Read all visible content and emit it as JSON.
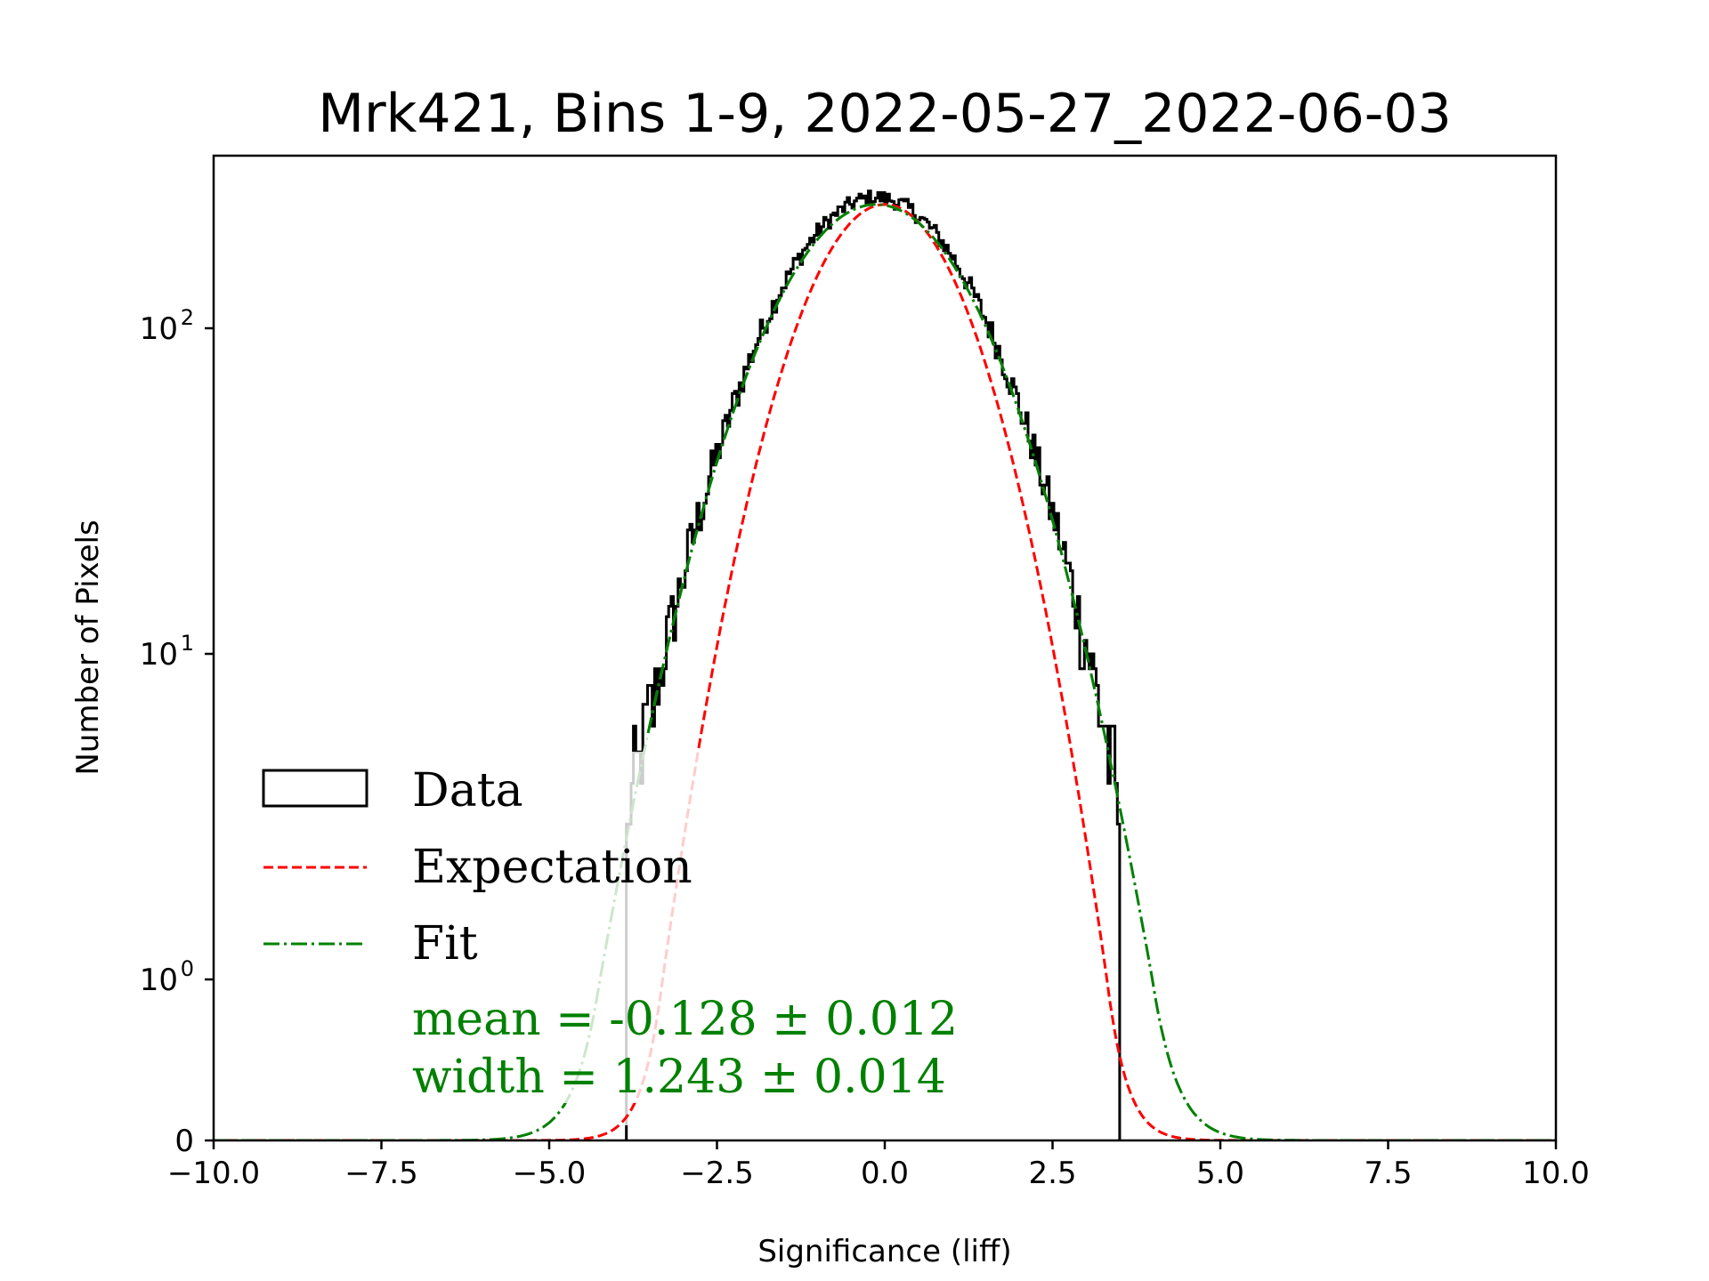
{
  "chart_data": {
    "type": "line",
    "title": "Mrk421, Bins 1-9, 2022-05-27_2022-06-03",
    "xlabel": "Significance (liff)",
    "ylabel": "Number of Pixels",
    "xlim": [
      -10,
      10
    ],
    "yscale": "symlog",
    "ylim": [
      0,
      400
    ],
    "x_ticks": [
      -10.0,
      -7.5,
      -5.0,
      -2.5,
      0.0,
      2.5,
      5.0,
      7.5,
      10.0
    ],
    "x_tick_labels": [
      "−10.0",
      "−7.5",
      "−5.0",
      "−2.5",
      "0.0",
      "2.5",
      "5.0",
      "7.5",
      "10.0"
    ],
    "y_ticks": [
      0,
      1,
      10,
      100
    ],
    "y_tick_labels": [
      {
        "base": "0",
        "exp": ""
      },
      {
        "base": "10",
        "exp": "0"
      },
      {
        "base": "10",
        "exp": "1"
      },
      {
        "base": "10",
        "exp": "2"
      }
    ],
    "grid": false,
    "legend_position": "lower-left",
    "series": [
      {
        "name": "Data",
        "kind": "histogram-step",
        "color": "#000000",
        "range": [
          -3.85,
          3.5
        ],
        "peak_approx": 260
      },
      {
        "name": "Expectation",
        "kind": "gaussian",
        "style": "dashed",
        "color": "#ff0000",
        "mean": 0.0,
        "width": 1.0,
        "amplitude": 240
      },
      {
        "name": "Fit",
        "kind": "gaussian",
        "style": "dashdot",
        "color": "#008000",
        "mean": -0.128,
        "width": 1.243,
        "amplitude": 240
      }
    ],
    "legend": [
      "Data",
      "Expectation",
      "Fit"
    ],
    "annotations": {
      "mean_line": "mean = -0.128 ± 0.012",
      "width_line": "width = 1.243 ± 0.014",
      "color": "#008000"
    }
  }
}
